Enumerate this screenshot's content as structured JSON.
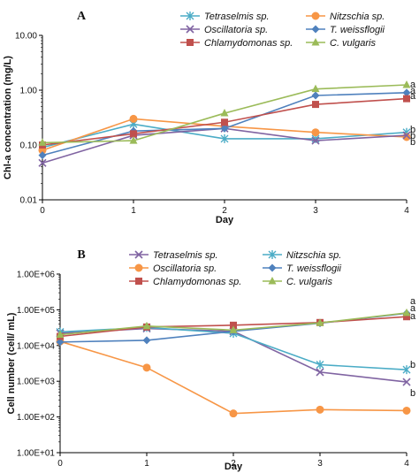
{
  "chart_data": [
    {
      "type": "line",
      "panel_label": "A",
      "xlabel": "Day",
      "ylabel": "Chl-a concentration (mg/L)",
      "x": [
        0,
        1,
        2,
        3,
        4
      ],
      "x_ticks": [
        "0",
        "1",
        "2",
        "3",
        "4"
      ],
      "ylim": [
        0.01,
        10
      ],
      "yscale": "log",
      "y_ticks": [
        10,
        1,
        0.1,
        0.01
      ],
      "y_tick_labels": [
        "10.00",
        "1.00",
        "0.10",
        "0.01"
      ],
      "grid": false,
      "legend_placement": "top",
      "series": [
        {
          "name": "Tetraselmis sp.",
          "color": "#4BACC6",
          "marker": "star",
          "values": [
            0.09,
            0.24,
            0.13,
            0.13,
            0.17
          ]
        },
        {
          "name": "Nitzschia sp.",
          "color": "#F79646",
          "marker": "circle",
          "values": [
            0.08,
            0.3,
            0.22,
            0.17,
            0.14
          ]
        },
        {
          "name": "Oscillatoria sp.",
          "color": "#8064A2",
          "marker": "x",
          "values": [
            0.047,
            0.15,
            0.2,
            0.12,
            0.15
          ]
        },
        {
          "name": "T. weissflogii",
          "color": "#4F81BD",
          "marker": "diamond",
          "values": [
            0.065,
            0.18,
            0.2,
            0.8,
            0.9
          ]
        },
        {
          "name": "Chlamydomonas sp.",
          "color": "#C0504D",
          "marker": "square",
          "values": [
            0.1,
            0.16,
            0.26,
            0.55,
            0.7
          ]
        },
        {
          "name": "C. vulgaris",
          "color": "#9BBB59",
          "marker": "triangle",
          "values": [
            0.11,
            0.12,
            0.38,
            1.05,
            1.25
          ]
        }
      ],
      "annotations": [
        "a",
        "a",
        "a",
        "b",
        "b",
        "b"
      ]
    },
    {
      "type": "line",
      "panel_label": "B",
      "xlabel": "Day",
      "ylabel": "Cell number (cell/ mL)",
      "x": [
        0,
        1,
        2,
        3,
        4
      ],
      "x_ticks": [
        "0",
        "1",
        "2",
        "3",
        "4"
      ],
      "ylim": [
        10,
        1000000
      ],
      "yscale": "log",
      "y_ticks": [
        1000000,
        100000,
        10000,
        1000,
        100,
        10
      ],
      "y_tick_labels": [
        "1.00E+06",
        "1.00E+05",
        "1.00E+04",
        "1.00E+03",
        "1.00E+02",
        "1.00E+01"
      ],
      "grid": false,
      "legend_placement": "top",
      "series": [
        {
          "name": "Tetraselmis sp.",
          "color": "#8064A2",
          "marker": "x",
          "values": [
            22000,
            30000,
            25000,
            1800,
            950
          ]
        },
        {
          "name": "Nitzschia sp.",
          "color": "#4BACC6",
          "marker": "star",
          "values": [
            24000,
            32000,
            22000,
            2900,
            2100
          ]
        },
        {
          "name": "Oscillatoria sp.",
          "color": "#F79646",
          "marker": "circle",
          "values": [
            13000,
            2400,
            125,
            160,
            150
          ]
        },
        {
          "name": "T. weissflogii",
          "color": "#4F81BD",
          "marker": "diamond",
          "values": [
            12500,
            14000,
            25000,
            42000,
            80000
          ]
        },
        {
          "name": "Chlamydomonas sp.",
          "color": "#C0504D",
          "marker": "square",
          "values": [
            18000,
            33000,
            37000,
            44000,
            64000
          ]
        },
        {
          "name": "C. vulgaris",
          "color": "#9BBB59",
          "marker": "triangle",
          "values": [
            20000,
            35000,
            27000,
            43000,
            82000
          ]
        }
      ],
      "annotations": [
        "a",
        "a",
        "a",
        "b",
        "b"
      ]
    }
  ]
}
